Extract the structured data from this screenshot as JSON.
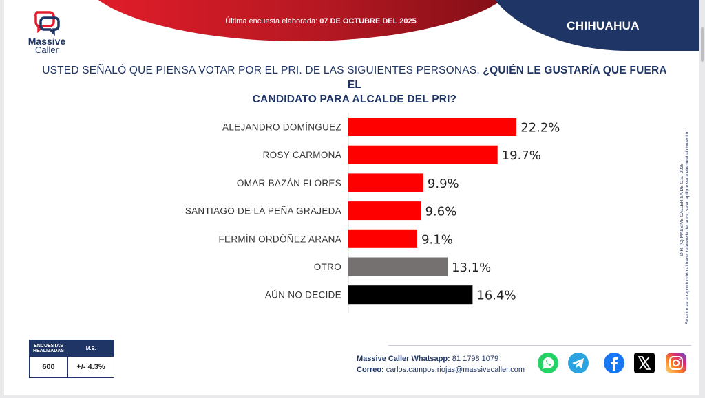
{
  "header": {
    "date_label": "Última encuesta elaborada:",
    "date_value": "07 DE OCTUBRE DEL 2025",
    "state": "CHIHUAHUA"
  },
  "logo": {
    "line1": "Massive",
    "line2": "Caller"
  },
  "question": {
    "part1": "USTED SEÑALÓ QUE PIENSA VOTAR POR EL PRI. DE LAS SIGUIENTES PERSONAS,",
    "part2_line1": "¿QUIÉN LE GUSTARÍA QUE FUERA EL",
    "part2_line2": "CANDIDATO PARA ALCALDE DEL PRI?"
  },
  "chart_data": {
    "type": "bar",
    "orientation": "horizontal",
    "categories": [
      "ALEJANDRO DOMÍNGUEZ",
      "ROSY CARMONA",
      "OMAR BAZÁN FLORES",
      "SANTIAGO DE LA PEÑA GRAJEDA",
      "FERMÍN ORDÓÑEZ ARANA",
      "OTRO",
      "AÚN NO DECIDE"
    ],
    "values": [
      22.2,
      19.7,
      9.9,
      9.6,
      9.1,
      13.1,
      16.4
    ],
    "value_labels": [
      "22.2%",
      "19.7%",
      "9.9%",
      "9.6%",
      "9.1%",
      "13.1%",
      "16.4%"
    ],
    "colors": [
      "#ff0000",
      "#ff0000",
      "#ff0000",
      "#ff0000",
      "#ff0000",
      "#767171",
      "#000000"
    ],
    "xlim": [
      0,
      25
    ]
  },
  "copyright": {
    "line1": "D.R. (C) MASSIVE CALLER SA DE C.V., 2025",
    "line2": "Se autoriza la reproducción al hacer referencia del autor, salvo aplique veda electoral al contenido."
  },
  "stats": {
    "col1_header": "ENCUESTAS REALIZADAS",
    "col2_header": "M.E.",
    "col1_value": "600",
    "col2_value": "+/- 4.3%"
  },
  "contact": {
    "whatsapp_label": "Massive Caller Whatsapp:",
    "whatsapp_value": "81 1798 1079",
    "email_label": "Correo:",
    "email_value": "carlos.campos.riojas@massivecaller.com"
  },
  "colors": {
    "navy": "#1f3566",
    "red": "#e41d2a"
  },
  "social_icons": [
    "whatsapp-icon",
    "telegram-icon",
    "facebook-icon",
    "x-icon",
    "instagram-icon"
  ]
}
